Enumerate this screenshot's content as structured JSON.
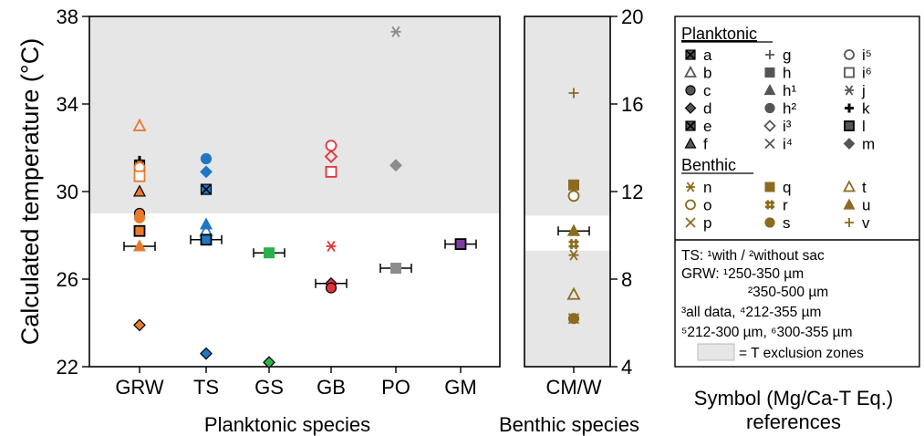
{
  "chart_data": [
    {
      "type": "scatter",
      "panel": "planktonic",
      "xlabel": "Planktonic species",
      "ylabel": "Calculated temperature (°C)",
      "ylim": [
        22,
        38
      ],
      "yticks": [
        "22",
        "26",
        "30",
        "34",
        "38"
      ],
      "categories": [
        "GRW",
        "TS",
        "GS",
        "GB",
        "PO",
        "GM"
      ],
      "exclusion_zones": [
        [
          29,
          38
        ]
      ],
      "points": [
        {
          "cat": "GRW",
          "y": 33.0,
          "sym": "b",
          "color": "#E87A2E"
        },
        {
          "cat": "GRW",
          "y": 31.4,
          "sym": "k",
          "color": "#7A3A10"
        },
        {
          "cat": "GRW",
          "y": 31.2,
          "sym": "a",
          "color": "#E87A2E"
        },
        {
          "cat": "GRW",
          "y": 31.1,
          "sym": "i5",
          "color": "#E87A2E"
        },
        {
          "cat": "GRW",
          "y": 30.7,
          "sym": "i6",
          "color": "#E87A2E"
        },
        {
          "cat": "GRW",
          "y": 30.0,
          "sym": "f",
          "color": "#E87A2E"
        },
        {
          "cat": "GRW",
          "y": 29.0,
          "sym": "c",
          "color": "#E87A2E"
        },
        {
          "cat": "GRW",
          "y": 28.8,
          "sym": "h2",
          "color": "#E87A2E"
        },
        {
          "cat": "GRW",
          "y": 28.2,
          "sym": "l",
          "color": "#E87A2E"
        },
        {
          "cat": "GRW",
          "y": 27.5,
          "sym": "h1",
          "color": "#E87A2E",
          "xerr": true
        },
        {
          "cat": "GRW",
          "y": 23.9,
          "sym": "d",
          "color": "#E87A2E"
        },
        {
          "cat": "TS",
          "y": 31.5,
          "sym": "h2",
          "color": "#1F77C4"
        },
        {
          "cat": "TS",
          "y": 30.9,
          "sym": "m",
          "color": "#1F77C4"
        },
        {
          "cat": "TS",
          "y": 30.1,
          "sym": "e",
          "color": "#1F77C4"
        },
        {
          "cat": "TS",
          "y": 28.5,
          "sym": "h1",
          "color": "#1F77C4"
        },
        {
          "cat": "TS",
          "y": 28.2,
          "sym": "b",
          "color": "#1F77C4"
        },
        {
          "cat": "TS",
          "y": 27.8,
          "sym": "l",
          "color": "#1F77C4",
          "xerr": true
        },
        {
          "cat": "TS",
          "y": 22.6,
          "sym": "d",
          "color": "#1F77C4"
        },
        {
          "cat": "GS",
          "y": 27.2,
          "sym": "h",
          "color": "#2BB24C",
          "xerr": true
        },
        {
          "cat": "GS",
          "y": 22.2,
          "sym": "d",
          "color": "#2BB24C"
        },
        {
          "cat": "GB",
          "y": 32.1,
          "sym": "i5",
          "color": "#E0343A"
        },
        {
          "cat": "GB",
          "y": 31.6,
          "sym": "i3",
          "color": "#E0343A"
        },
        {
          "cat": "GB",
          "y": 30.9,
          "sym": "i6",
          "color": "#E0343A"
        },
        {
          "cat": "GB",
          "y": 27.5,
          "sym": "j",
          "color": "#E0343A"
        },
        {
          "cat": "GB",
          "y": 25.8,
          "sym": "d",
          "color": "#E0343A",
          "xerr": true
        },
        {
          "cat": "GB",
          "y": 25.6,
          "sym": "c",
          "color": "#E0343A"
        },
        {
          "cat": "PO",
          "y": 37.3,
          "sym": "j",
          "color": "#8C8C8C"
        },
        {
          "cat": "PO",
          "y": 31.2,
          "sym": "m",
          "color": "#8C8C8C"
        },
        {
          "cat": "PO",
          "y": 26.5,
          "sym": "h",
          "color": "#8C8C8C",
          "xerr": true
        },
        {
          "cat": "GM",
          "y": 27.6,
          "sym": "l",
          "color": "#7B3FA0",
          "xerr": true
        }
      ]
    },
    {
      "type": "scatter",
      "panel": "benthic",
      "xlabel": "Benthic species",
      "ylim": [
        4,
        20
      ],
      "yticks": [
        "4",
        "8",
        "12",
        "16",
        "20"
      ],
      "categories": [
        "CM/W"
      ],
      "exclusion_zones": [
        [
          10.9,
          20
        ],
        [
          4,
          9.3
        ]
      ],
      "points": [
        {
          "cat": "CM/W",
          "y": 16.5,
          "sym": "v",
          "color": "#8B6B1F"
        },
        {
          "cat": "CM/W",
          "y": 12.3,
          "sym": "q",
          "color": "#8B6B1F"
        },
        {
          "cat": "CM/W",
          "y": 11.8,
          "sym": "o",
          "color": "#8B6B1F"
        },
        {
          "cat": "CM/W",
          "y": 10.2,
          "sym": "u",
          "color": "#8B6B1F",
          "xerr": true
        },
        {
          "cat": "CM/W",
          "y": 9.6,
          "sym": "r",
          "color": "#8B6B1F"
        },
        {
          "cat": "CM/W",
          "y": 9.1,
          "sym": "n",
          "color": "#8B6B1F"
        },
        {
          "cat": "CM/W",
          "y": 7.3,
          "sym": "t",
          "color": "#8B6B1F"
        },
        {
          "cat": "CM/W",
          "y": 6.2,
          "sym": "p",
          "color": "#8B6B1F"
        },
        {
          "cat": "CM/W",
          "y": 6.2,
          "sym": "s",
          "color": "#8B6B1F"
        }
      ]
    }
  ],
  "legend": {
    "heading_planktonic": "Planktonic",
    "heading_benthic": "Benthic",
    "planktonic_items": [
      {
        "sym": "a",
        "label": "a"
      },
      {
        "sym": "g",
        "label": "g"
      },
      {
        "sym": "i5",
        "label": "i⁵"
      },
      {
        "sym": "b",
        "label": "b"
      },
      {
        "sym": "h",
        "label": "h"
      },
      {
        "sym": "i6",
        "label": "i⁶"
      },
      {
        "sym": "c",
        "label": "c"
      },
      {
        "sym": "h1",
        "label": "h¹"
      },
      {
        "sym": "j",
        "label": "j"
      },
      {
        "sym": "d",
        "label": "d"
      },
      {
        "sym": "h2",
        "label": "h²"
      },
      {
        "sym": "k",
        "label": "k"
      },
      {
        "sym": "e",
        "label": "e"
      },
      {
        "sym": "i3",
        "label": "i³"
      },
      {
        "sym": "l",
        "label": "l"
      },
      {
        "sym": "f",
        "label": "f"
      },
      {
        "sym": "i4",
        "label": "i⁴"
      },
      {
        "sym": "m",
        "label": "m"
      }
    ],
    "benthic_items": [
      {
        "sym": "n",
        "label": "n"
      },
      {
        "sym": "q",
        "label": "q"
      },
      {
        "sym": "t",
        "label": "t"
      },
      {
        "sym": "o",
        "label": "o"
      },
      {
        "sym": "r",
        "label": "r"
      },
      {
        "sym": "u",
        "label": "u"
      },
      {
        "sym": "p",
        "label": "p"
      },
      {
        "sym": "s",
        "label": "s"
      },
      {
        "sym": "v",
        "label": "v"
      }
    ],
    "notes": [
      "TS:    ¹with / ²without sac",
      "GRW: ¹250-350 µm",
      "²350-500 µm",
      "³all data, ⁴212-355 µm",
      "⁵212-300 µm, ⁶300-355 µm",
      "= T exclusion zones"
    ],
    "exclusion_color": "#E6E6E6",
    "legend_symbol_color": "#555555",
    "benthic_symbol_color": "#8B6B1F",
    "caption": [
      "Symbol (Mg/Ca-T Eq.)",
      "references"
    ]
  }
}
